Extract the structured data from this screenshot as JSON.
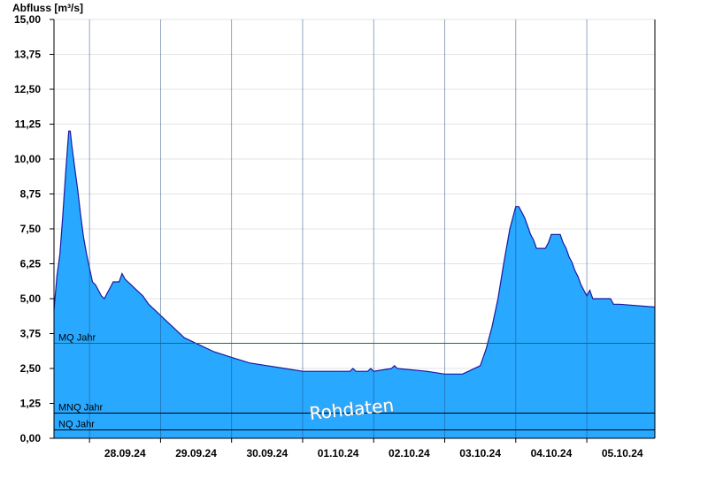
{
  "chart_data": {
    "type": "area",
    "ylabel": "Abfluss [m³/s]",
    "ylim": [
      0,
      15
    ],
    "yticks": [
      "0,00",
      "1,25",
      "2,50",
      "3,75",
      "5,00",
      "6,25",
      "7,50",
      "8,75",
      "10,00",
      "11,25",
      "12,50",
      "13,75",
      "15,00"
    ],
    "xlim": [
      "2024-09-27T12:00",
      "2024-10-05T23:00"
    ],
    "xticks": [
      "28.09.24",
      "29.09.24",
      "30.09.24",
      "01.10.24",
      "02.10.24",
      "03.10.24",
      "04.10.24",
      "05.10.24"
    ],
    "grid": true,
    "series": [
      {
        "color": "#29a8ff",
        "line_color": "#1a1aa0",
        "points": [
          [
            "2024-09-27T12:00",
            4.6
          ],
          [
            "2024-09-27T13:00",
            5.8
          ],
          [
            "2024-09-27T14:00",
            6.6
          ],
          [
            "2024-09-27T15:00",
            8.0
          ],
          [
            "2024-09-27T16:00",
            9.6
          ],
          [
            "2024-09-27T17:00",
            11.0
          ],
          [
            "2024-09-27T17:30",
            11.0
          ],
          [
            "2024-09-27T18:00",
            10.5
          ],
          [
            "2024-09-27T19:00",
            9.7
          ],
          [
            "2024-09-27T20:00",
            8.9
          ],
          [
            "2024-09-27T21:00",
            8.0
          ],
          [
            "2024-09-27T22:00",
            7.2
          ],
          [
            "2024-09-27T23:00",
            6.6
          ],
          [
            "2024-09-28T00:00",
            6.1
          ],
          [
            "2024-09-28T01:00",
            5.6
          ],
          [
            "2024-09-28T02:00",
            5.5
          ],
          [
            "2024-09-28T03:00",
            5.3
          ],
          [
            "2024-09-28T04:00",
            5.1
          ],
          [
            "2024-09-28T05:00",
            5.0
          ],
          [
            "2024-09-28T06:00",
            5.2
          ],
          [
            "2024-09-28T07:00",
            5.4
          ],
          [
            "2024-09-28T08:00",
            5.6
          ],
          [
            "2024-09-28T10:00",
            5.6
          ],
          [
            "2024-09-28T11:00",
            5.9
          ],
          [
            "2024-09-28T12:00",
            5.7
          ],
          [
            "2024-09-28T13:00",
            5.6
          ],
          [
            "2024-09-28T14:00",
            5.5
          ],
          [
            "2024-09-28T15:00",
            5.4
          ],
          [
            "2024-09-28T17:00",
            5.2
          ],
          [
            "2024-09-28T18:00",
            5.1
          ],
          [
            "2024-09-28T20:00",
            4.8
          ],
          [
            "2024-09-28T23:00",
            4.5
          ],
          [
            "2024-09-29T02:00",
            4.2
          ],
          [
            "2024-09-29T04:00",
            4.0
          ],
          [
            "2024-09-29T06:00",
            3.8
          ],
          [
            "2024-09-29T08:00",
            3.6
          ],
          [
            "2024-09-29T12:00",
            3.4
          ],
          [
            "2024-09-29T14:00",
            3.3
          ],
          [
            "2024-09-29T18:00",
            3.1
          ],
          [
            "2024-09-30T00:00",
            2.9
          ],
          [
            "2024-09-30T06:00",
            2.7
          ],
          [
            "2024-09-30T12:00",
            2.6
          ],
          [
            "2024-09-30T18:00",
            2.5
          ],
          [
            "2024-10-01T00:00",
            2.4
          ],
          [
            "2024-10-01T12:00",
            2.4
          ],
          [
            "2024-10-01T16:00",
            2.4
          ],
          [
            "2024-10-01T17:00",
            2.5
          ],
          [
            "2024-10-01T18:00",
            2.4
          ],
          [
            "2024-10-01T22:00",
            2.4
          ],
          [
            "2024-10-01T23:00",
            2.5
          ],
          [
            "2024-10-02T00:00",
            2.4
          ],
          [
            "2024-10-02T06:00",
            2.5
          ],
          [
            "2024-10-02T07:00",
            2.6
          ],
          [
            "2024-10-02T08:00",
            2.5
          ],
          [
            "2024-10-02T18:00",
            2.4
          ],
          [
            "2024-10-03T00:00",
            2.3
          ],
          [
            "2024-10-03T06:00",
            2.3
          ],
          [
            "2024-10-03T08:00",
            2.4
          ],
          [
            "2024-10-03T12:00",
            2.6
          ],
          [
            "2024-10-03T14:00",
            3.2
          ],
          [
            "2024-10-03T16:00",
            4.0
          ],
          [
            "2024-10-03T18:00",
            5.0
          ],
          [
            "2024-10-03T20:00",
            6.3
          ],
          [
            "2024-10-03T22:00",
            7.5
          ],
          [
            "2024-10-04T00:00",
            8.3
          ],
          [
            "2024-10-04T01:00",
            8.3
          ],
          [
            "2024-10-04T02:00",
            8.1
          ],
          [
            "2024-10-04T03:00",
            7.9
          ],
          [
            "2024-10-04T04:00",
            7.6
          ],
          [
            "2024-10-04T05:00",
            7.3
          ],
          [
            "2024-10-04T06:00",
            7.1
          ],
          [
            "2024-10-04T07:00",
            6.8
          ],
          [
            "2024-10-04T10:00",
            6.8
          ],
          [
            "2024-10-04T11:00",
            7.0
          ],
          [
            "2024-10-04T12:00",
            7.3
          ],
          [
            "2024-10-04T15:00",
            7.3
          ],
          [
            "2024-10-04T16:00",
            7.0
          ],
          [
            "2024-10-04T17:00",
            6.8
          ],
          [
            "2024-10-04T18:00",
            6.5
          ],
          [
            "2024-10-04T19:00",
            6.3
          ],
          [
            "2024-10-04T20:00",
            6.0
          ],
          [
            "2024-10-04T21:00",
            5.8
          ],
          [
            "2024-10-04T22:00",
            5.5
          ],
          [
            "2024-10-04T23:00",
            5.3
          ],
          [
            "2024-10-05T00:00",
            5.1
          ],
          [
            "2024-10-05T01:00",
            5.3
          ],
          [
            "2024-10-05T02:00",
            5.0
          ],
          [
            "2024-10-05T08:00",
            5.0
          ],
          [
            "2024-10-05T09:00",
            4.8
          ],
          [
            "2024-10-05T11:00",
            4.8
          ],
          [
            "2024-10-05T23:00",
            4.7
          ]
        ]
      }
    ],
    "reference_lines": [
      {
        "label": "MQ Jahr",
        "value": 3.4,
        "color": "#1a7a1a"
      },
      {
        "label": "MNQ Jahr",
        "value": 0.9,
        "color": "#000000"
      },
      {
        "label": "NQ Jahr",
        "value": 0.3,
        "color": "#000000"
      }
    ],
    "annotations": [
      "Rohdaten"
    ]
  }
}
